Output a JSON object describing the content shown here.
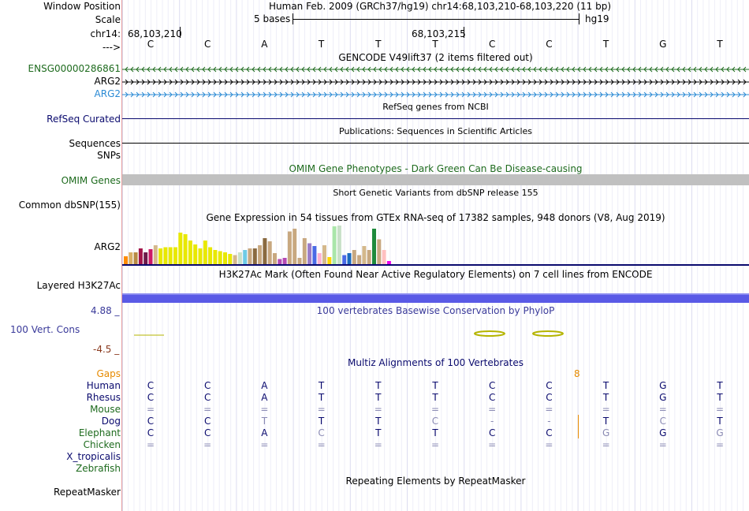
{
  "header": {
    "window_position_label": "Window Position",
    "window_position_value": "Human Feb. 2009 (GRCh37/hg19)   chr14:68,103,210-68,103,220 (11 bp)",
    "scale_label": "Scale",
    "scale_text": "5 bases",
    "scale_assembly": "hg19",
    "chrom_label": "chr14:",
    "coord_left": "68,103,210",
    "coord_mid": "68,103,215",
    "strand_label": "--->"
  },
  "sequence": [
    "C",
    "C",
    "A",
    "T",
    "T",
    "T",
    "C",
    "C",
    "T",
    "G",
    "T"
  ],
  "gencode": {
    "title": "GENCODE V49lift37 (2 items filtered out)",
    "genes": [
      {
        "name": "ENSG00000286861",
        "direction": "left",
        "color": "#1e6b1e"
      },
      {
        "name": "ARG2",
        "direction": "right",
        "color": "#000000"
      },
      {
        "name": "ARG2",
        "direction": "right",
        "color": "#2a8ad4"
      }
    ]
  },
  "refseq": {
    "title": "RefSeq genes from NCBI",
    "label": "RefSeq Curated"
  },
  "publications": {
    "title": "Publications: Sequences in Scientific Articles",
    "label1": "Sequences",
    "label2": "SNPs"
  },
  "omim": {
    "title": "OMIM Gene Phenotypes - Dark Green Can Be Disease-causing",
    "label": "OMIM Genes"
  },
  "dbsnp": {
    "title": "Short Genetic Variants from dbSNP release 155",
    "label": "Common dbSNP(155)"
  },
  "gtex": {
    "title": "Gene Expression in 54 tissues from GTEx RNA-seq of 17382 samples, 948 donors (V8, Aug 2019)",
    "label": "ARG2",
    "bars": [
      {
        "v": 0.22,
        "c": "#ff8c00"
      },
      {
        "v": 0.32,
        "c": "#d9b066"
      },
      {
        "v": 0.32,
        "c": "#b88a44"
      },
      {
        "v": 0.42,
        "c": "#a3154a"
      },
      {
        "v": 0.32,
        "c": "#6e1a4a"
      },
      {
        "v": 0.4,
        "c": "#cc1a66"
      },
      {
        "v": 0.5,
        "c": "#d4b88c"
      },
      {
        "v": 0.42,
        "c": "#e8e800"
      },
      {
        "v": 0.45,
        "c": "#e8e800"
      },
      {
        "v": 0.45,
        "c": "#e8e800"
      },
      {
        "v": 0.45,
        "c": "#e8e800"
      },
      {
        "v": 0.82,
        "c": "#e8e800"
      },
      {
        "v": 0.78,
        "c": "#e8e800"
      },
      {
        "v": 0.62,
        "c": "#e8e800"
      },
      {
        "v": 0.52,
        "c": "#e8e800"
      },
      {
        "v": 0.42,
        "c": "#e8e800"
      },
      {
        "v": 0.62,
        "c": "#e8e800"
      },
      {
        "v": 0.45,
        "c": "#e8e800"
      },
      {
        "v": 0.38,
        "c": "#e8e800"
      },
      {
        "v": 0.35,
        "c": "#e8e800"
      },
      {
        "v": 0.32,
        "c": "#e8e800"
      },
      {
        "v": 0.28,
        "c": "#e8e800"
      },
      {
        "v": 0.25,
        "c": "#d4b88c"
      },
      {
        "v": 0.32,
        "c": "#c8e0c8"
      },
      {
        "v": 0.38,
        "c": "#6ecbe6"
      },
      {
        "v": 0.42,
        "c": "#c8a880"
      },
      {
        "v": 0.42,
        "c": "#8a6a40"
      },
      {
        "v": 0.5,
        "c": "#c8a880"
      },
      {
        "v": 0.68,
        "c": "#8a6a40"
      },
      {
        "v": 0.6,
        "c": "#c8a880"
      },
      {
        "v": 0.3,
        "c": "#c8a880"
      },
      {
        "v": 0.15,
        "c": "#b44ab4"
      },
      {
        "v": 0.18,
        "c": "#b44ab4"
      },
      {
        "v": 0.85,
        "c": "#c8a880"
      },
      {
        "v": 0.92,
        "c": "#c8a880"
      },
      {
        "v": 0.18,
        "c": "#c8a880"
      },
      {
        "v": 0.68,
        "c": "#c8a880"
      },
      {
        "v": 0.55,
        "c": "#9a7cc8"
      },
      {
        "v": 0.48,
        "c": "#4a6ae6"
      },
      {
        "v": 0.3,
        "c": "#ffb0d0"
      },
      {
        "v": 0.5,
        "c": "#d4b88c"
      },
      {
        "v": 0.2,
        "c": "#ffd700"
      },
      {
        "v": 0.98,
        "c": "#aae6aa"
      },
      {
        "v": 1.0,
        "c": "#c8e0c8"
      },
      {
        "v": 0.25,
        "c": "#4a6ae6"
      },
      {
        "v": 0.3,
        "c": "#1a6abe"
      },
      {
        "v": 0.38,
        "c": "#c8a880"
      },
      {
        "v": 0.25,
        "c": "#c8a880"
      },
      {
        "v": 0.48,
        "c": "#d4b88c"
      },
      {
        "v": 0.38,
        "c": "#c8a880"
      },
      {
        "v": 0.92,
        "c": "#1e8a3c"
      },
      {
        "v": 0.65,
        "c": "#c8a880"
      },
      {
        "v": 0.38,
        "c": "#ffc0c0"
      },
      {
        "v": 0.1,
        "c": "#ee00ee"
      }
    ]
  },
  "h3k27ac": {
    "title": "H3K27Ac Mark (Often Found Near Active Regulatory Elements) on 7 cell lines from ENCODE",
    "label": "Layered H3K27Ac"
  },
  "conservation": {
    "title": "100 vertebrates Basewise Conservation by PhyloP",
    "label": "100 Vert. Cons",
    "ymax": "4.88 _",
    "ymin": "-4.5 _"
  },
  "multiz": {
    "title": "Multiz Alignments of 100 Vertebrates",
    "gaps_label": "Gaps",
    "gap_count": "8",
    "species": [
      {
        "name": "Human",
        "bases": [
          "C",
          "C",
          "A",
          "T",
          "T",
          "T",
          "C",
          "C",
          "T",
          "G",
          "T"
        ]
      },
      {
        "name": "Rhesus",
        "bases": [
          "C",
          "C",
          "A",
          "T",
          "T",
          "T",
          "C",
          "C",
          "T",
          "G",
          "T"
        ]
      },
      {
        "name": "Mouse",
        "bases": [
          "=",
          "=",
          "=",
          "=",
          "=",
          "=",
          "=",
          "=",
          "=",
          "=",
          "="
        ]
      },
      {
        "name": "Dog",
        "bases": [
          "C",
          "C",
          "T",
          "T",
          "T",
          "C",
          "-",
          "-",
          "T",
          "C",
          "T"
        ]
      },
      {
        "name": "Elephant",
        "bases": [
          "C",
          "C",
          "A",
          "C",
          "T",
          "T",
          "C",
          "C",
          "G",
          "G",
          "G"
        ]
      },
      {
        "name": "Chicken",
        "bases": [
          "=",
          "=",
          "=",
          "=",
          "=",
          "=",
          "=",
          "=",
          "=",
          "=",
          "="
        ]
      },
      {
        "name": "X_tropicalis",
        "bases": [
          "",
          "",
          "",
          "",
          "",
          "",
          "",
          "",
          "",
          "",
          ""
        ]
      },
      {
        "name": "Zebrafish",
        "bases": [
          "",
          "",
          "",
          "",
          "",
          "",
          "",
          "",
          "",
          "",
          ""
        ]
      }
    ]
  },
  "repeatmasker": {
    "title": "Repeating Elements by RepeatMasker",
    "label": "RepeatMasker"
  },
  "colors": {
    "navy": "#0a0a6e",
    "green": "#1e6b1e",
    "blue": "#2a8ad4",
    "brown": "#8a4a1e",
    "orange": "#e68a00",
    "h3k": "#5a5ae6"
  }
}
